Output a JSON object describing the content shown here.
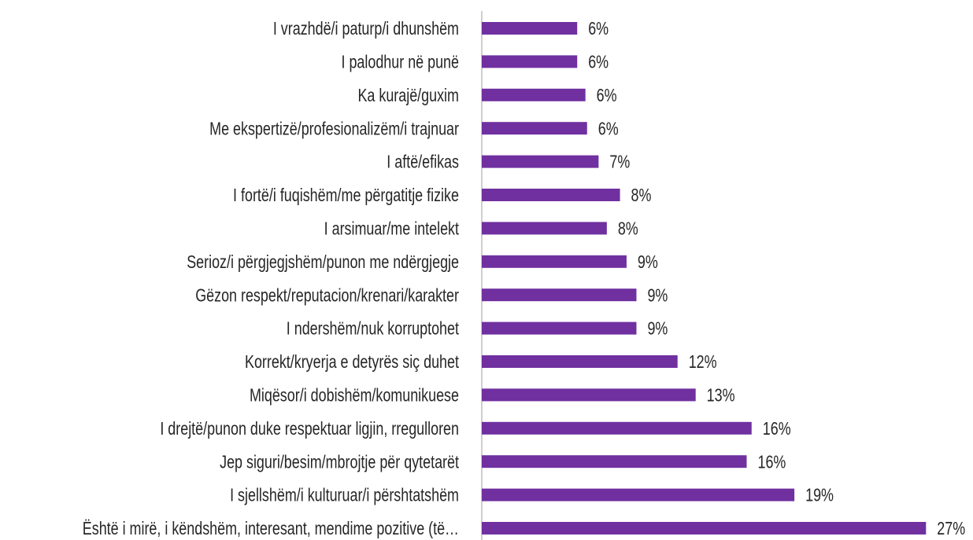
{
  "chart_data": {
    "type": "hbar",
    "color": "#7030a0",
    "categories": [
      "I vrazhdë/i paturp/i dhunshëm",
      "I palodhur në punë",
      "Ka kurajë/guxim",
      "Me ekspertizë/profesionalizëm/i trajnuar",
      "I aftë/efikas",
      "I fortë/i fuqishëm/me përgatitje fizike",
      "I arsimuar/me intelekt",
      "Serioz/i përgjegjshëm/punon me ndërgjegje",
      "Gëzon respekt/reputacion/krenari/karakter",
      "I ndershëm/nuk korruptohet",
      "Korrekt/kryerja e detyrës siç duhet",
      "Miqësor/i dobishëm/komunikuese",
      "I drejtë/punon duke respektuar ligjin, rregulloren",
      "Jep siguri/besim/mbrojtje për qytetarët",
      "I sjellshëm/i kulturuar/i përshtatshëm",
      "Është i mirë, i këndshëm, interesant, mendime pozitive (të…"
    ],
    "values": [
      5.8,
      5.8,
      6.3,
      6.4,
      7.1,
      8.4,
      7.6,
      8.8,
      9.4,
      9.4,
      11.9,
      13.0,
      16.4,
      16.1,
      19.0,
      27.0
    ],
    "value_labels": [
      "6%",
      "6%",
      "6%",
      "6%",
      "7%",
      "8%",
      "8%",
      "9%",
      "9%",
      "9%",
      "12%",
      "13%",
      "16%",
      "16%",
      "19%",
      "27%"
    ],
    "xlim": [
      0,
      29
    ]
  }
}
